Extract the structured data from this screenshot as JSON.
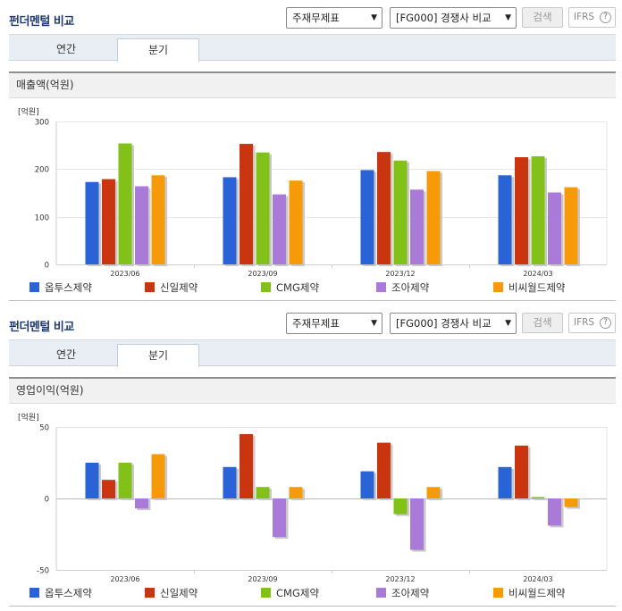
{
  "panels": [
    {
      "title": "펀더멘털 비교",
      "select_statement": "주재무제표",
      "select_compare": "[FG000] 경쟁사 비교",
      "search_label": "검색",
      "ifrs_label": "IFRS",
      "ifrs_help": "?",
      "tabs": [
        {
          "label": "연간",
          "active": false
        },
        {
          "label": "분기",
          "active": true
        }
      ],
      "chart_title": "매출액(억원)"
    },
    {
      "title": "펀더멘털 비교",
      "select_statement": "주재무제표",
      "select_compare": "[FG000] 경쟁사 비교",
      "search_label": "검색",
      "ifrs_label": "IFRS",
      "ifrs_help": "?",
      "tabs": [
        {
          "label": "연간",
          "active": false
        },
        {
          "label": "분기",
          "active": true
        }
      ],
      "chart_title": "영업이익(억원)"
    }
  ],
  "legend": [
    {
      "name": "옵투스제약",
      "color": "#2a63d8"
    },
    {
      "name": "신일제약",
      "color": "#c8350f"
    },
    {
      "name": "CMG제약",
      "color": "#82c118"
    },
    {
      "name": "조아제약",
      "color": "#a97ad8"
    },
    {
      "name": "비씨월드제약",
      "color": "#f79a0a"
    }
  ],
  "chart_data": [
    {
      "type": "bar",
      "unit": "[억원]",
      "categories": [
        "2023/06",
        "2023/09",
        "2023/12",
        "2024/03"
      ],
      "yticks": [
        0,
        100,
        200,
        300
      ],
      "ylim": [
        0,
        300
      ],
      "series": [
        {
          "name": "옵투스제약",
          "values": [
            173,
            183,
            198,
            187
          ]
        },
        {
          "name": "신일제약",
          "values": [
            179,
            253,
            236,
            225
          ]
        },
        {
          "name": "CMG제약",
          "values": [
            254,
            235,
            218,
            227
          ]
        },
        {
          "name": "조아제약",
          "values": [
            164,
            147,
            157,
            151
          ]
        },
        {
          "name": "비씨월드제약",
          "values": [
            187,
            176,
            196,
            162
          ]
        }
      ]
    },
    {
      "type": "bar",
      "unit": "[억원]",
      "categories": [
        "2023/06",
        "2023/09",
        "2023/12",
        "2024/03"
      ],
      "yticks": [
        -50,
        0,
        50
      ],
      "ylim": [
        -50,
        50
      ],
      "series": [
        {
          "name": "옵투스제약",
          "values": [
            25,
            22,
            19,
            22
          ]
        },
        {
          "name": "신일제약",
          "values": [
            13,
            45,
            39,
            37
          ]
        },
        {
          "name": "CMG제약",
          "values": [
            25,
            8,
            -11,
            1
          ]
        },
        {
          "name": "조아제약",
          "values": [
            -7,
            -27,
            -36,
            -19
          ]
        },
        {
          "name": "비씨월드제약",
          "values": [
            31,
            8,
            8,
            -6
          ]
        }
      ]
    }
  ]
}
